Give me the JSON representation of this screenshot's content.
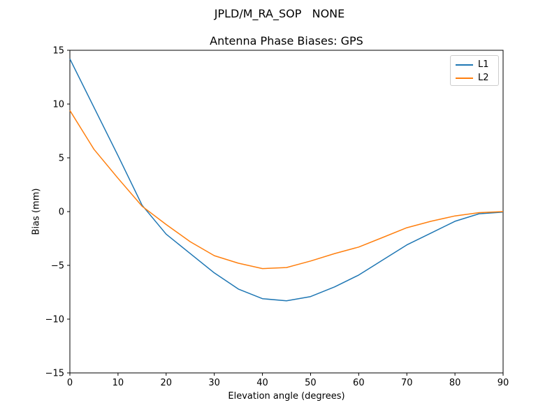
{
  "chart_data": {
    "type": "line",
    "suptitle": "JPLD/M_RA_SOP   NONE",
    "title": "Antenna Phase Biases: GPS",
    "xlabel": "Elevation angle (degrees)",
    "ylabel": "Bias (mm)",
    "xlim": [
      0,
      90
    ],
    "ylim": [
      -15,
      15
    ],
    "xticks": [
      0,
      10,
      20,
      30,
      40,
      50,
      60,
      70,
      80,
      90
    ],
    "yticks": [
      -15,
      -10,
      -5,
      0,
      5,
      10,
      15
    ],
    "grid": false,
    "legend_position": "upper right",
    "background_color": "#ffffff",
    "spine_color": "#000000",
    "x": [
      0,
      5,
      10,
      15,
      20,
      25,
      30,
      35,
      40,
      45,
      50,
      55,
      60,
      65,
      70,
      75,
      80,
      85,
      90
    ],
    "series": [
      {
        "name": "L1",
        "color": "#1f77b4",
        "values": [
          14.2,
          9.7,
          5.2,
          0.6,
          -2.1,
          -3.9,
          -5.7,
          -7.2,
          -8.1,
          -8.3,
          -7.9,
          -7.0,
          -5.9,
          -4.5,
          -3.1,
          -2.0,
          -0.9,
          -0.2,
          -0.05
        ]
      },
      {
        "name": "L2",
        "color": "#ff7f0e",
        "values": [
          9.4,
          5.8,
          3.1,
          0.5,
          -1.2,
          -2.8,
          -4.1,
          -4.8,
          -5.3,
          -5.2,
          -4.6,
          -3.9,
          -3.3,
          -2.4,
          -1.5,
          -0.9,
          -0.4,
          -0.1,
          0.0
        ]
      }
    ]
  }
}
